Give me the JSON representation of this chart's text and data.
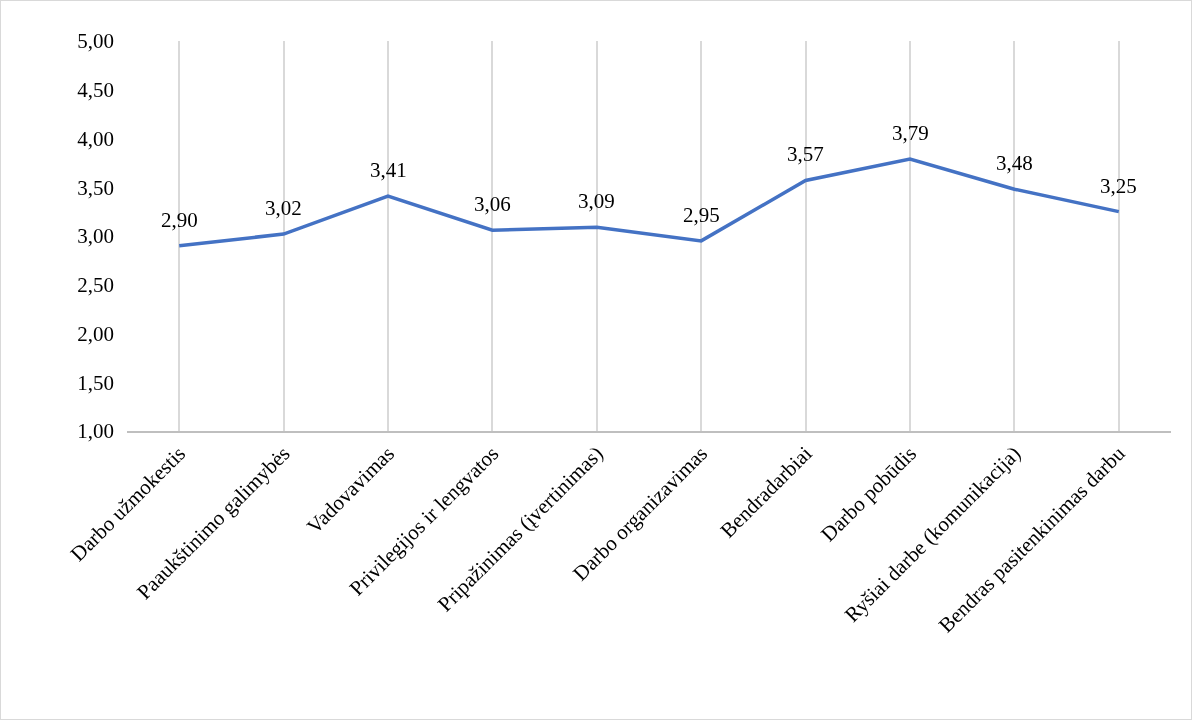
{
  "chart_data": {
    "type": "line",
    "categories": [
      "Darbo užmokestis",
      "Paaukštinimo galimybės",
      "Vadovavimas",
      "Privilegijos ir lengvatos",
      "Pripažinimas (įvertinimas)",
      "Darbo organizavimas",
      "Bendradarbiai",
      "Darbo pobūdis",
      "Ryšiai darbe (komunikacija)",
      "Bendras pasitenkinimas darbu"
    ],
    "series": [
      {
        "color": "#4472c4",
        "values": [
          2.9,
          3.02,
          3.41,
          3.06,
          3.09,
          2.95,
          3.57,
          3.79,
          3.48,
          3.25
        ],
        "value_labels": [
          "2,90",
          "3,02",
          "3,41",
          "3,06",
          "3,09",
          "2,95",
          "3,57",
          "3,79",
          "3,48",
          "3,25"
        ]
      }
    ],
    "ylim": [
      1,
      5
    ],
    "yticks": [
      {
        "value": 1,
        "label": "1,00"
      },
      {
        "value": 1.5,
        "label": "1,50"
      },
      {
        "value": 2,
        "label": "2,00"
      },
      {
        "value": 2.5,
        "label": "2,50"
      },
      {
        "value": 3,
        "label": "3,00"
      },
      {
        "value": 3.5,
        "label": "3,50"
      },
      {
        "value": 4,
        "label": "4,00"
      },
      {
        "value": 4.5,
        "label": "4,50"
      },
      {
        "value": 5,
        "label": "5,00"
      }
    ],
    "grid": "x",
    "marker": "none",
    "line_style": "solid"
  }
}
